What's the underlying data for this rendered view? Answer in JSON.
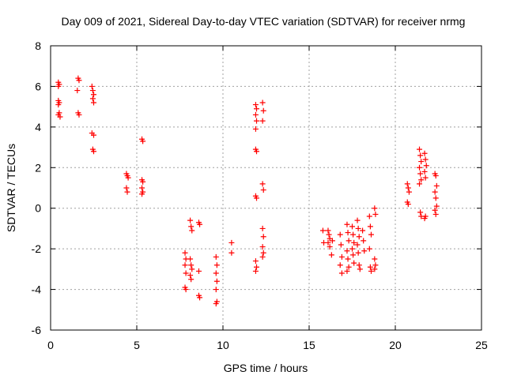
{
  "chart_data": {
    "type": "scatter",
    "title": "Day 009 of 2021, Sidereal Day-to-day VTEC variation (SDTVAR) for receiver nrmg",
    "xlabel": "GPS time / hours",
    "ylabel": "SDTVAR / TECUs",
    "xlim": [
      0,
      25
    ],
    "ylim": [
      -6,
      8
    ],
    "xticks": [
      0,
      5,
      10,
      15,
      20,
      25
    ],
    "yticks": [
      -6,
      -4,
      -2,
      0,
      2,
      4,
      6,
      8
    ],
    "grid": true,
    "marker": "+",
    "series": [
      {
        "name": "SDTVAR",
        "color": "#ff0000",
        "points": [
          [
            0.45,
            6.2
          ],
          [
            0.45,
            6.0
          ],
          [
            0.5,
            6.1
          ],
          [
            0.45,
            5.3
          ],
          [
            0.5,
            5.2
          ],
          [
            0.45,
            5.1
          ],
          [
            0.5,
            4.7
          ],
          [
            0.45,
            4.6
          ],
          [
            0.55,
            4.5
          ],
          [
            1.6,
            6.4
          ],
          [
            1.65,
            6.3
          ],
          [
            1.55,
            5.8
          ],
          [
            1.6,
            4.7
          ],
          [
            1.65,
            4.6
          ],
          [
            2.4,
            6.0
          ],
          [
            2.45,
            5.8
          ],
          [
            2.5,
            5.6
          ],
          [
            2.45,
            5.4
          ],
          [
            2.5,
            5.2
          ],
          [
            2.4,
            3.7
          ],
          [
            2.5,
            3.6
          ],
          [
            2.45,
            2.9
          ],
          [
            2.5,
            2.8
          ],
          [
            4.4,
            1.7
          ],
          [
            4.45,
            1.6
          ],
          [
            4.5,
            1.5
          ],
          [
            4.4,
            1.0
          ],
          [
            4.45,
            0.8
          ],
          [
            5.3,
            3.4
          ],
          [
            5.35,
            3.3
          ],
          [
            5.3,
            1.4
          ],
          [
            5.35,
            1.3
          ],
          [
            5.3,
            1.0
          ],
          [
            5.35,
            0.8
          ],
          [
            5.3,
            0.7
          ],
          [
            7.8,
            -2.2
          ],
          [
            7.85,
            -2.5
          ],
          [
            7.8,
            -2.8
          ],
          [
            7.85,
            -3.2
          ],
          [
            7.8,
            -3.9
          ],
          [
            7.85,
            -4.0
          ],
          [
            8.1,
            -0.6
          ],
          [
            8.15,
            -0.9
          ],
          [
            8.2,
            -1.1
          ],
          [
            8.1,
            -2.5
          ],
          [
            8.15,
            -2.8
          ],
          [
            8.2,
            -3.0
          ],
          [
            8.1,
            -3.3
          ],
          [
            8.15,
            -3.5
          ],
          [
            8.6,
            -0.7
          ],
          [
            8.65,
            -0.8
          ],
          [
            8.6,
            -3.1
          ],
          [
            8.6,
            -4.3
          ],
          [
            8.65,
            -4.4
          ],
          [
            9.6,
            -2.4
          ],
          [
            9.65,
            -2.8
          ],
          [
            9.6,
            -3.2
          ],
          [
            9.65,
            -3.6
          ],
          [
            9.6,
            -4.0
          ],
          [
            9.65,
            -4.6
          ],
          [
            9.6,
            -4.7
          ],
          [
            10.5,
            -1.7
          ],
          [
            10.5,
            -2.2
          ],
          [
            11.9,
            5.1
          ],
          [
            11.95,
            4.9
          ],
          [
            11.9,
            4.6
          ],
          [
            11.95,
            4.3
          ],
          [
            11.9,
            3.9
          ],
          [
            11.9,
            2.9
          ],
          [
            11.95,
            2.8
          ],
          [
            11.9,
            0.6
          ],
          [
            11.95,
            0.5
          ],
          [
            11.9,
            -2.6
          ],
          [
            11.95,
            -2.9
          ],
          [
            11.9,
            -3.1
          ],
          [
            12.3,
            5.2
          ],
          [
            12.35,
            4.8
          ],
          [
            12.3,
            4.3
          ],
          [
            12.3,
            1.2
          ],
          [
            12.35,
            0.9
          ],
          [
            12.3,
            -1.0
          ],
          [
            12.35,
            -1.4
          ],
          [
            12.3,
            -1.9
          ],
          [
            12.35,
            -2.2
          ],
          [
            12.3,
            -2.4
          ],
          [
            15.8,
            -1.1
          ],
          [
            15.85,
            -1.7
          ],
          [
            16.1,
            -1.1
          ],
          [
            16.15,
            -1.3
          ],
          [
            16.2,
            -1.5
          ],
          [
            16.1,
            -1.7
          ],
          [
            16.2,
            -1.9
          ],
          [
            16.3,
            -2.3
          ],
          [
            16.35,
            -1.6
          ],
          [
            16.8,
            -1.3
          ],
          [
            16.85,
            -1.8
          ],
          [
            16.9,
            -2.4
          ],
          [
            16.8,
            -2.8
          ],
          [
            16.9,
            -3.2
          ],
          [
            17.2,
            -0.8
          ],
          [
            17.25,
            -1.2
          ],
          [
            17.3,
            -1.6
          ],
          [
            17.2,
            -2.1
          ],
          [
            17.25,
            -2.5
          ],
          [
            17.3,
            -2.9
          ],
          [
            17.2,
            -3.1
          ],
          [
            17.5,
            -0.9
          ],
          [
            17.55,
            -1.3
          ],
          [
            17.6,
            -1.7
          ],
          [
            17.5,
            -2.0
          ],
          [
            17.55,
            -2.3
          ],
          [
            17.6,
            -2.7
          ],
          [
            17.8,
            -0.6
          ],
          [
            17.85,
            -1.0
          ],
          [
            17.9,
            -1.4
          ],
          [
            17.8,
            -1.8
          ],
          [
            17.85,
            -2.2
          ],
          [
            17.9,
            -2.8
          ],
          [
            17.95,
            -3.0
          ],
          [
            18.1,
            -1.1
          ],
          [
            18.15,
            -1.6
          ],
          [
            18.2,
            -2.1
          ],
          [
            18.5,
            -0.4
          ],
          [
            18.55,
            -0.9
          ],
          [
            18.6,
            -1.3
          ],
          [
            18.5,
            -2.0
          ],
          [
            18.55,
            -2.9
          ],
          [
            18.6,
            -3.1
          ],
          [
            18.8,
            0.0
          ],
          [
            18.85,
            -0.3
          ],
          [
            18.8,
            -2.5
          ],
          [
            18.85,
            -2.8
          ],
          [
            18.8,
            -3.0
          ],
          [
            20.7,
            1.2
          ],
          [
            20.75,
            1.0
          ],
          [
            20.8,
            0.8
          ],
          [
            20.7,
            0.3
          ],
          [
            20.75,
            0.2
          ],
          [
            21.4,
            2.9
          ],
          [
            21.45,
            2.6
          ],
          [
            21.5,
            2.3
          ],
          [
            21.4,
            2.0
          ],
          [
            21.45,
            1.7
          ],
          [
            21.5,
            1.4
          ],
          [
            21.4,
            1.2
          ],
          [
            21.45,
            -0.2
          ],
          [
            21.5,
            -0.4
          ],
          [
            21.7,
            2.7
          ],
          [
            21.75,
            2.4
          ],
          [
            21.8,
            2.1
          ],
          [
            21.7,
            1.8
          ],
          [
            21.75,
            1.5
          ],
          [
            21.7,
            -0.5
          ],
          [
            21.75,
            -0.4
          ],
          [
            22.3,
            1.7
          ],
          [
            22.35,
            1.6
          ],
          [
            22.4,
            1.1
          ],
          [
            22.3,
            0.8
          ],
          [
            22.35,
            0.5
          ],
          [
            22.4,
            0.1
          ],
          [
            22.3,
            -0.1
          ],
          [
            22.35,
            -0.3
          ]
        ]
      }
    ]
  }
}
